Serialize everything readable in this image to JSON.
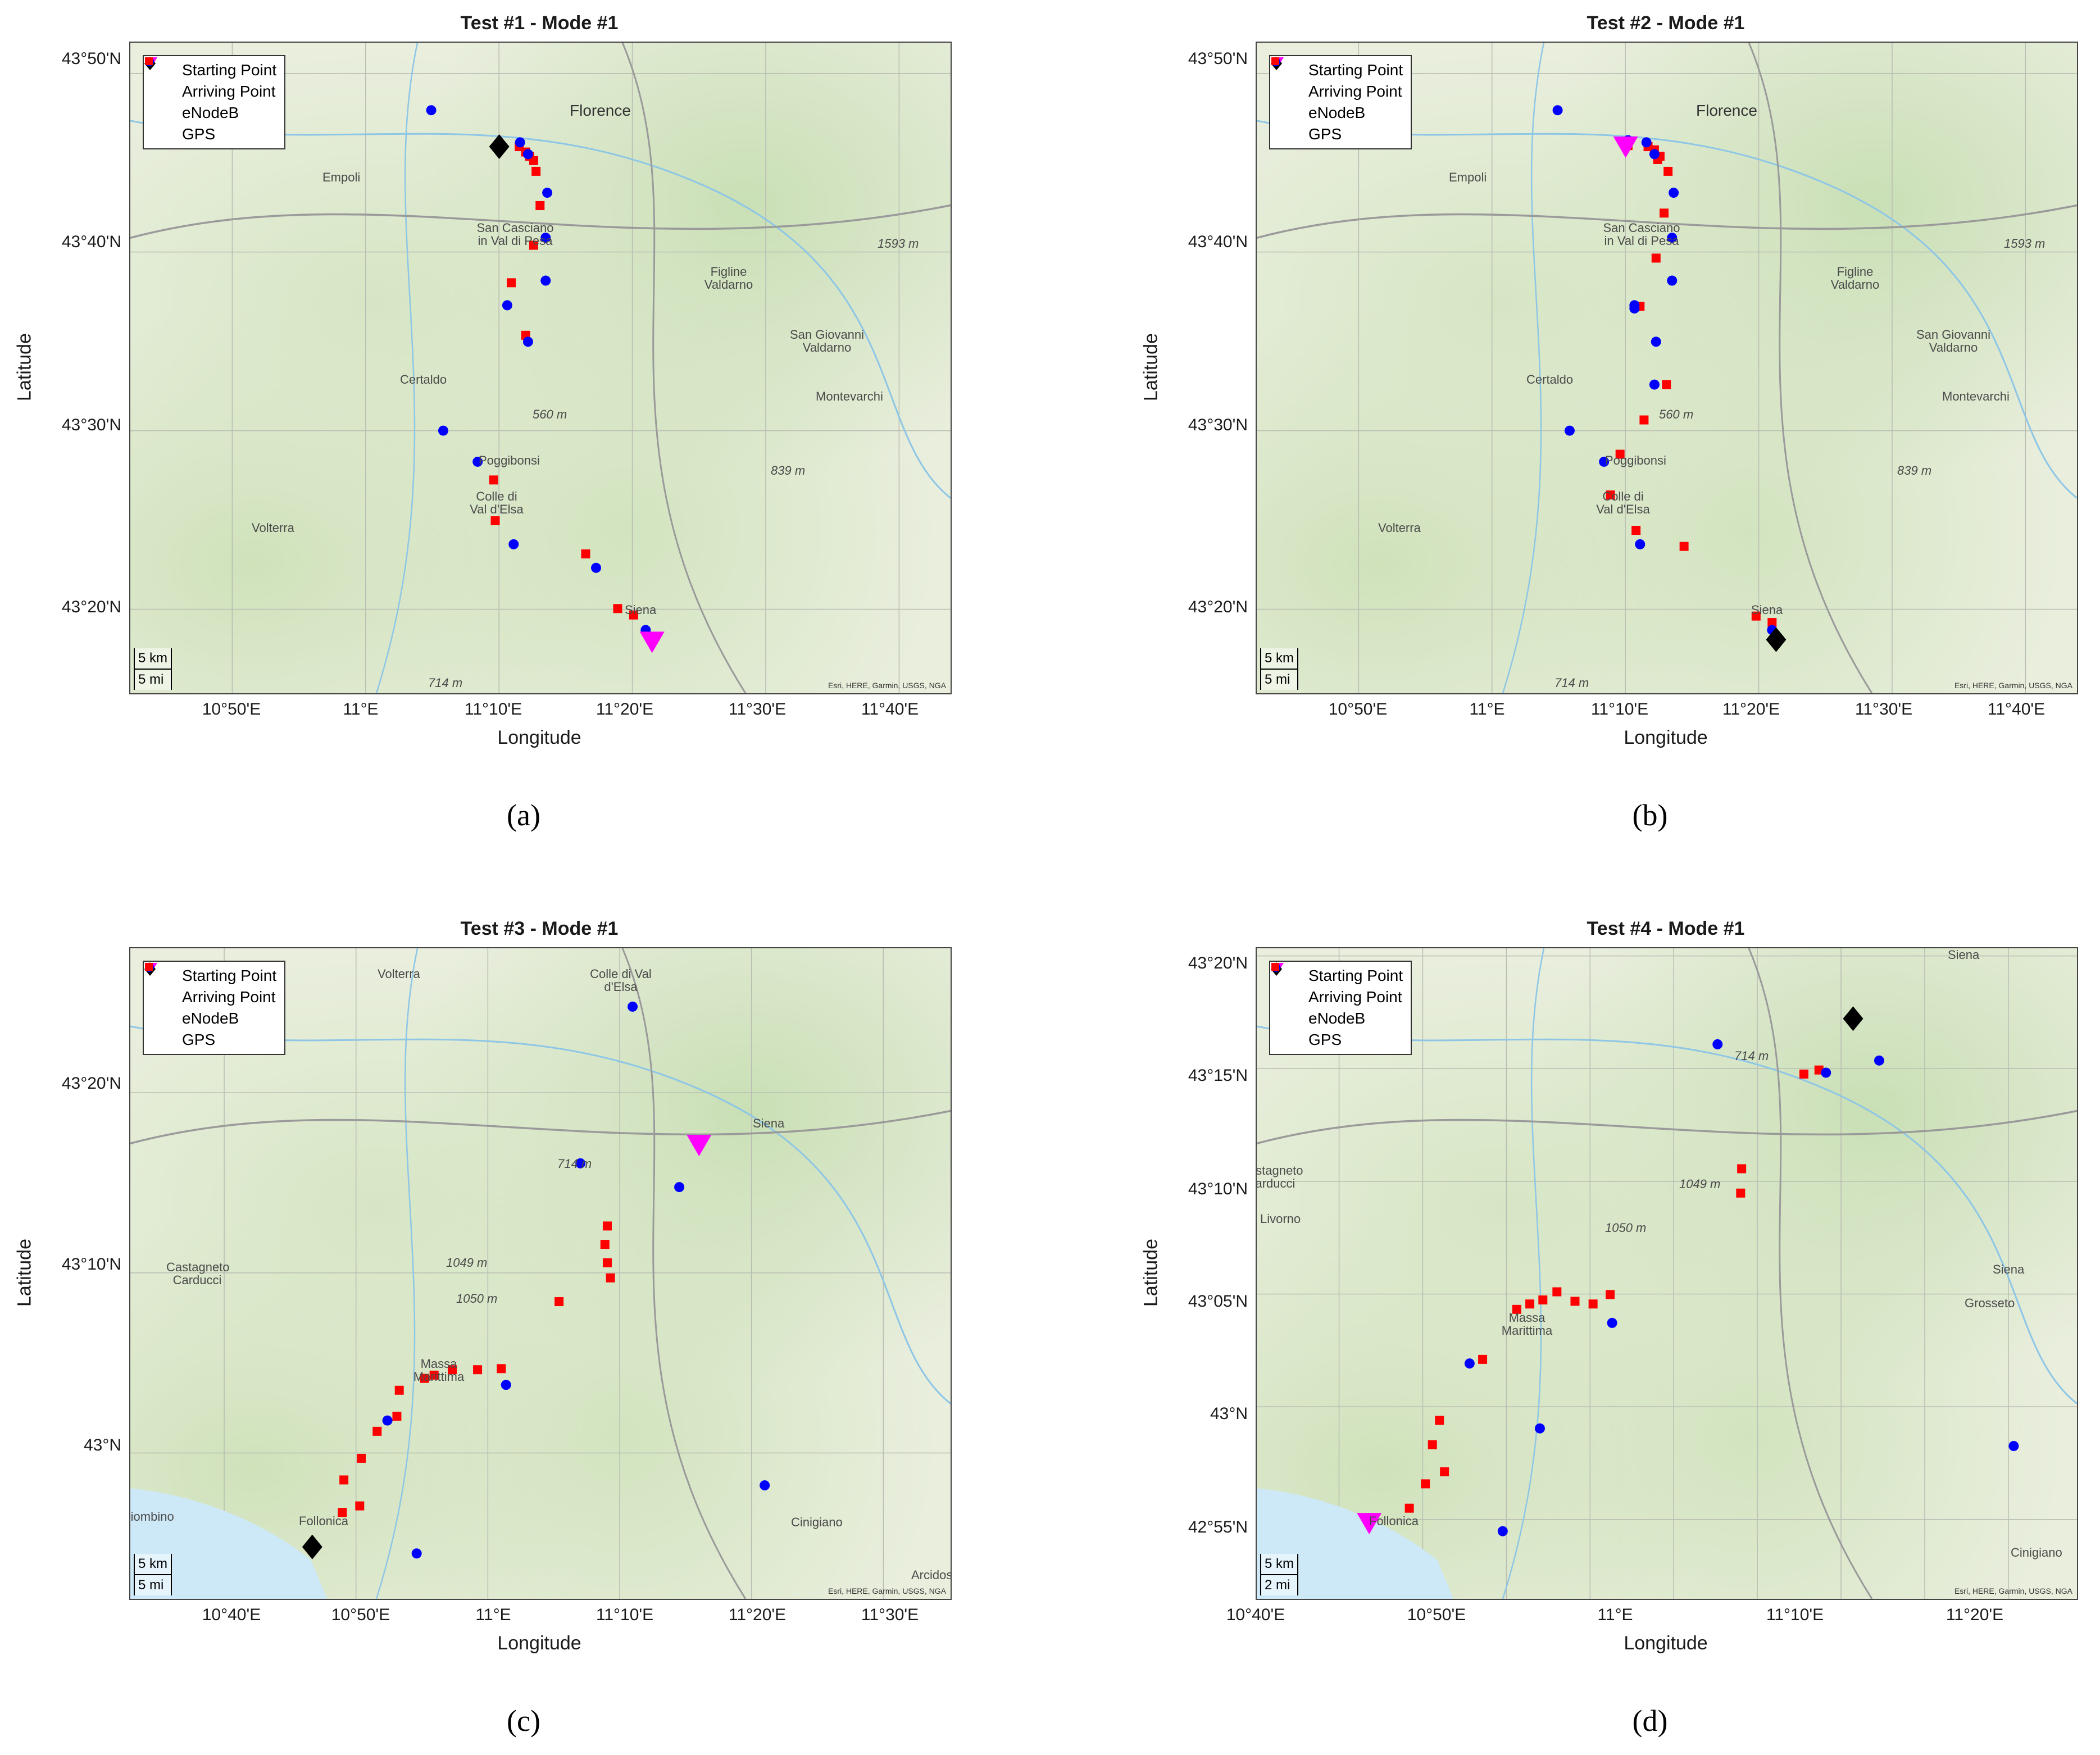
{
  "legend": {
    "start": "Starting Point",
    "arrive": "Arriving Point",
    "enodeb": "eNodeB",
    "gps": "GPS"
  },
  "colors": {
    "start": "#ff00ff",
    "arrive": "#000000",
    "enodeb": "#0000ff",
    "gps": "#ff0000",
    "water": "#cde8f6",
    "river": "#8ec6e6",
    "road": "#9a9a9a"
  },
  "attribution": "Esri, HERE, Garmin, USGS, NGA",
  "panels": [
    {
      "title": "Test #1 - Mode #1",
      "caption": "(a)",
      "xlabel": "Longitude",
      "ylabel": "Latitude",
      "scale": [
        "5 km",
        "5 mi"
      ],
      "yticks": [
        "43°50'N",
        "43°40'N",
        "43°30'N",
        "43°20'N"
      ],
      "xticks": [
        "10°50'E",
        "11°E",
        "11°10'E",
        "11°20'E",
        "11°30'E",
        "11°40'E"
      ],
      "places": [
        "Florence",
        "Empoli",
        "San Casciano in Val di Pesa",
        "Figline Valdarno",
        "San Giovanni Valdarno",
        "Certaldo",
        "Montevarchi",
        "Poggibonsi",
        "Colle di Val d'Elsa",
        "Volterra",
        "Siena",
        "1593 m",
        "560 m",
        "839 m",
        "714 m"
      ],
      "chart_data": {
        "type": "scatter",
        "xlim": [
          10.706,
          11.731
        ],
        "ylim": [
          43.255,
          43.862
        ],
        "start": [
          [
            11.358,
            43.303
          ]
        ],
        "arrive": [
          [
            11.167,
            43.765
          ]
        ],
        "enodeb": [
          [
            11.082,
            43.799
          ],
          [
            11.193,
            43.769
          ],
          [
            11.203,
            43.758
          ],
          [
            11.227,
            43.722
          ],
          [
            11.225,
            43.68
          ],
          [
            11.225,
            43.64
          ],
          [
            11.177,
            43.617
          ],
          [
            11.203,
            43.583
          ],
          [
            11.097,
            43.5
          ],
          [
            11.14,
            43.471
          ],
          [
            11.185,
            43.394
          ],
          [
            11.288,
            43.372
          ],
          [
            11.35,
            43.314
          ]
        ],
        "gps": [
          [
            11.168,
            43.764
          ],
          [
            11.192,
            43.765
          ],
          [
            11.2,
            43.76
          ],
          [
            11.205,
            43.756
          ],
          [
            11.21,
            43.752
          ],
          [
            11.213,
            43.742
          ],
          [
            11.218,
            43.71
          ],
          [
            11.21,
            43.673
          ],
          [
            11.182,
            43.638
          ],
          [
            11.2,
            43.589
          ],
          [
            11.16,
            43.454
          ],
          [
            11.162,
            43.416
          ],
          [
            11.275,
            43.385
          ],
          [
            11.315,
            43.334
          ],
          [
            11.335,
            43.328
          ]
        ]
      }
    },
    {
      "title": "Test #2 - Mode #1",
      "caption": "(b)",
      "xlabel": "Longitude",
      "ylabel": "Latitude",
      "scale": [
        "5 km",
        "5 mi"
      ],
      "yticks": [
        "43°50'N",
        "43°40'N",
        "43°30'N",
        "43°20'N"
      ],
      "xticks": [
        "10°50'E",
        "11°E",
        "11°10'E",
        "11°20'E",
        "11°30'E",
        "11°40'E"
      ],
      "places": [
        "Florence",
        "Empoli",
        "San Casciano in Val di Pesa",
        "Figline Valdarno",
        "San Giovanni Valdarno",
        "Certaldo",
        "Montevarchi",
        "Poggibonsi",
        "Colle di Val d'Elsa",
        "Volterra",
        "Siena",
        "1593 m",
        "560 m",
        "839 m",
        "714 m"
      ],
      "chart_data": {
        "type": "scatter",
        "xlim": [
          10.706,
          11.731
        ],
        "ylim": [
          43.255,
          43.862
        ],
        "start": [
          [
            11.167,
            43.765
          ]
        ],
        "arrive": [
          [
            11.355,
            43.305
          ]
        ],
        "enodeb": [
          [
            11.082,
            43.799
          ],
          [
            11.17,
            43.771
          ],
          [
            11.193,
            43.769
          ],
          [
            11.203,
            43.758
          ],
          [
            11.227,
            43.722
          ],
          [
            11.225,
            43.68
          ],
          [
            11.225,
            43.64
          ],
          [
            11.178,
            43.617
          ],
          [
            11.178,
            43.614
          ],
          [
            11.205,
            43.583
          ],
          [
            11.203,
            43.543
          ],
          [
            11.097,
            43.5
          ],
          [
            11.14,
            43.471
          ],
          [
            11.185,
            43.394
          ],
          [
            11.35,
            43.314
          ]
        ],
        "gps": [
          [
            11.17,
            43.766
          ],
          [
            11.195,
            43.765
          ],
          [
            11.203,
            43.762
          ],
          [
            11.21,
            43.756
          ],
          [
            11.207,
            43.753
          ],
          [
            11.22,
            43.742
          ],
          [
            11.215,
            43.703
          ],
          [
            11.205,
            43.661
          ],
          [
            11.185,
            43.616
          ],
          [
            11.218,
            43.543
          ],
          [
            11.19,
            43.51
          ],
          [
            11.16,
            43.478
          ],
          [
            11.148,
            43.44
          ],
          [
            11.18,
            43.407
          ],
          [
            11.24,
            43.392
          ],
          [
            11.33,
            43.327
          ],
          [
            11.35,
            43.321
          ]
        ]
      }
    },
    {
      "title": "Test #3 - Mode #1",
      "caption": "(c)",
      "xlabel": "Longitude",
      "ylabel": "Latitude",
      "scale": [
        "5 km",
        "5 mi"
      ],
      "yticks": [
        "43°20'N",
        "43°10'N",
        "43°N"
      ],
      "xticks": [
        "10°40'E",
        "10°50'E",
        "11°E",
        "11°10'E",
        "11°20'E",
        "11°30'E"
      ],
      "places": [
        "Colle di Val d'Elsa",
        "Volterra",
        "Siena",
        "Castagneto Carducci",
        "Massa Marittima",
        "Follonica",
        "Piombino",
        "Cinigiano",
        "Arcidosso",
        "714 m",
        "1049 m",
        "1050 m"
      ],
      "chart_data": {
        "type": "scatter",
        "xlim": [
          10.548,
          11.585
        ],
        "ylim": [
          42.865,
          43.467
        ],
        "start": [
          [
            11.267,
            43.285
          ]
        ],
        "arrive": [
          [
            10.778,
            42.913
          ]
        ],
        "enodeb": [
          [
            11.183,
            43.413
          ],
          [
            11.117,
            43.268
          ],
          [
            11.242,
            43.246
          ],
          [
            11.023,
            43.063
          ],
          [
            10.873,
            43.03
          ],
          [
            10.91,
            42.907
          ],
          [
            11.35,
            42.97
          ]
        ],
        "gps": [
          [
            11.151,
            43.21
          ],
          [
            11.148,
            43.193
          ],
          [
            11.151,
            43.176
          ],
          [
            11.155,
            43.162
          ],
          [
            11.09,
            43.14
          ],
          [
            11.017,
            43.078
          ],
          [
            10.987,
            43.077
          ],
          [
            10.955,
            43.077
          ],
          [
            10.932,
            43.072
          ],
          [
            10.92,
            43.069
          ],
          [
            10.888,
            43.058
          ],
          [
            10.885,
            43.034
          ],
          [
            10.86,
            43.02
          ],
          [
            10.84,
            42.995
          ],
          [
            10.818,
            42.975
          ],
          [
            10.838,
            42.951
          ],
          [
            10.816,
            42.945
          ]
        ]
      }
    },
    {
      "title": "Test #4 - Mode #1",
      "caption": "(d)",
      "xlabel": "Longitude",
      "ylabel": "Latitude",
      "scale": [
        "5 km",
        "2 mi"
      ],
      "yticks": [
        "43°20'N",
        "43°15'N",
        "43°10'N",
        "43°05'N",
        "43°N",
        "42°55'N"
      ],
      "xticks": [
        "10°40'E",
        "10°50'E",
        "11°E",
        "11°10'E",
        "11°20'E"
      ],
      "places": [
        "Siena",
        "Castagneto Carducci",
        "Livorno",
        "Massa Marittima",
        "Follonica",
        "Cinigiano",
        "Grosseto",
        "Siena",
        "714 m",
        "1049 m",
        "1050 m"
      ],
      "chart_data": {
        "type": "scatter",
        "xlim": [
          10.668,
          11.485
        ],
        "ylim": [
          42.858,
          43.339
        ],
        "start": [
          [
            10.78,
            42.914
          ]
        ],
        "arrive": [
          [
            11.262,
            43.287
          ]
        ],
        "enodeb": [
          [
            11.127,
            43.268
          ],
          [
            11.235,
            43.247
          ],
          [
            11.288,
            43.256
          ],
          [
            10.88,
            43.032
          ],
          [
            10.95,
            42.984
          ],
          [
            11.022,
            43.062
          ],
          [
            11.422,
            42.971
          ],
          [
            10.913,
            42.908
          ]
        ],
        "gps": [
          [
            11.228,
            43.249
          ],
          [
            11.213,
            43.246
          ],
          [
            11.151,
            43.176
          ],
          [
            11.15,
            43.158
          ],
          [
            11.02,
            43.083
          ],
          [
            11.003,
            43.076
          ],
          [
            10.985,
            43.078
          ],
          [
            10.967,
            43.085
          ],
          [
            10.953,
            43.079
          ],
          [
            10.94,
            43.076
          ],
          [
            10.927,
            43.072
          ],
          [
            10.893,
            43.035
          ],
          [
            10.85,
            42.99
          ],
          [
            10.843,
            42.972
          ],
          [
            10.855,
            42.952
          ],
          [
            10.836,
            42.943
          ],
          [
            10.82,
            42.925
          ]
        ]
      }
    }
  ]
}
